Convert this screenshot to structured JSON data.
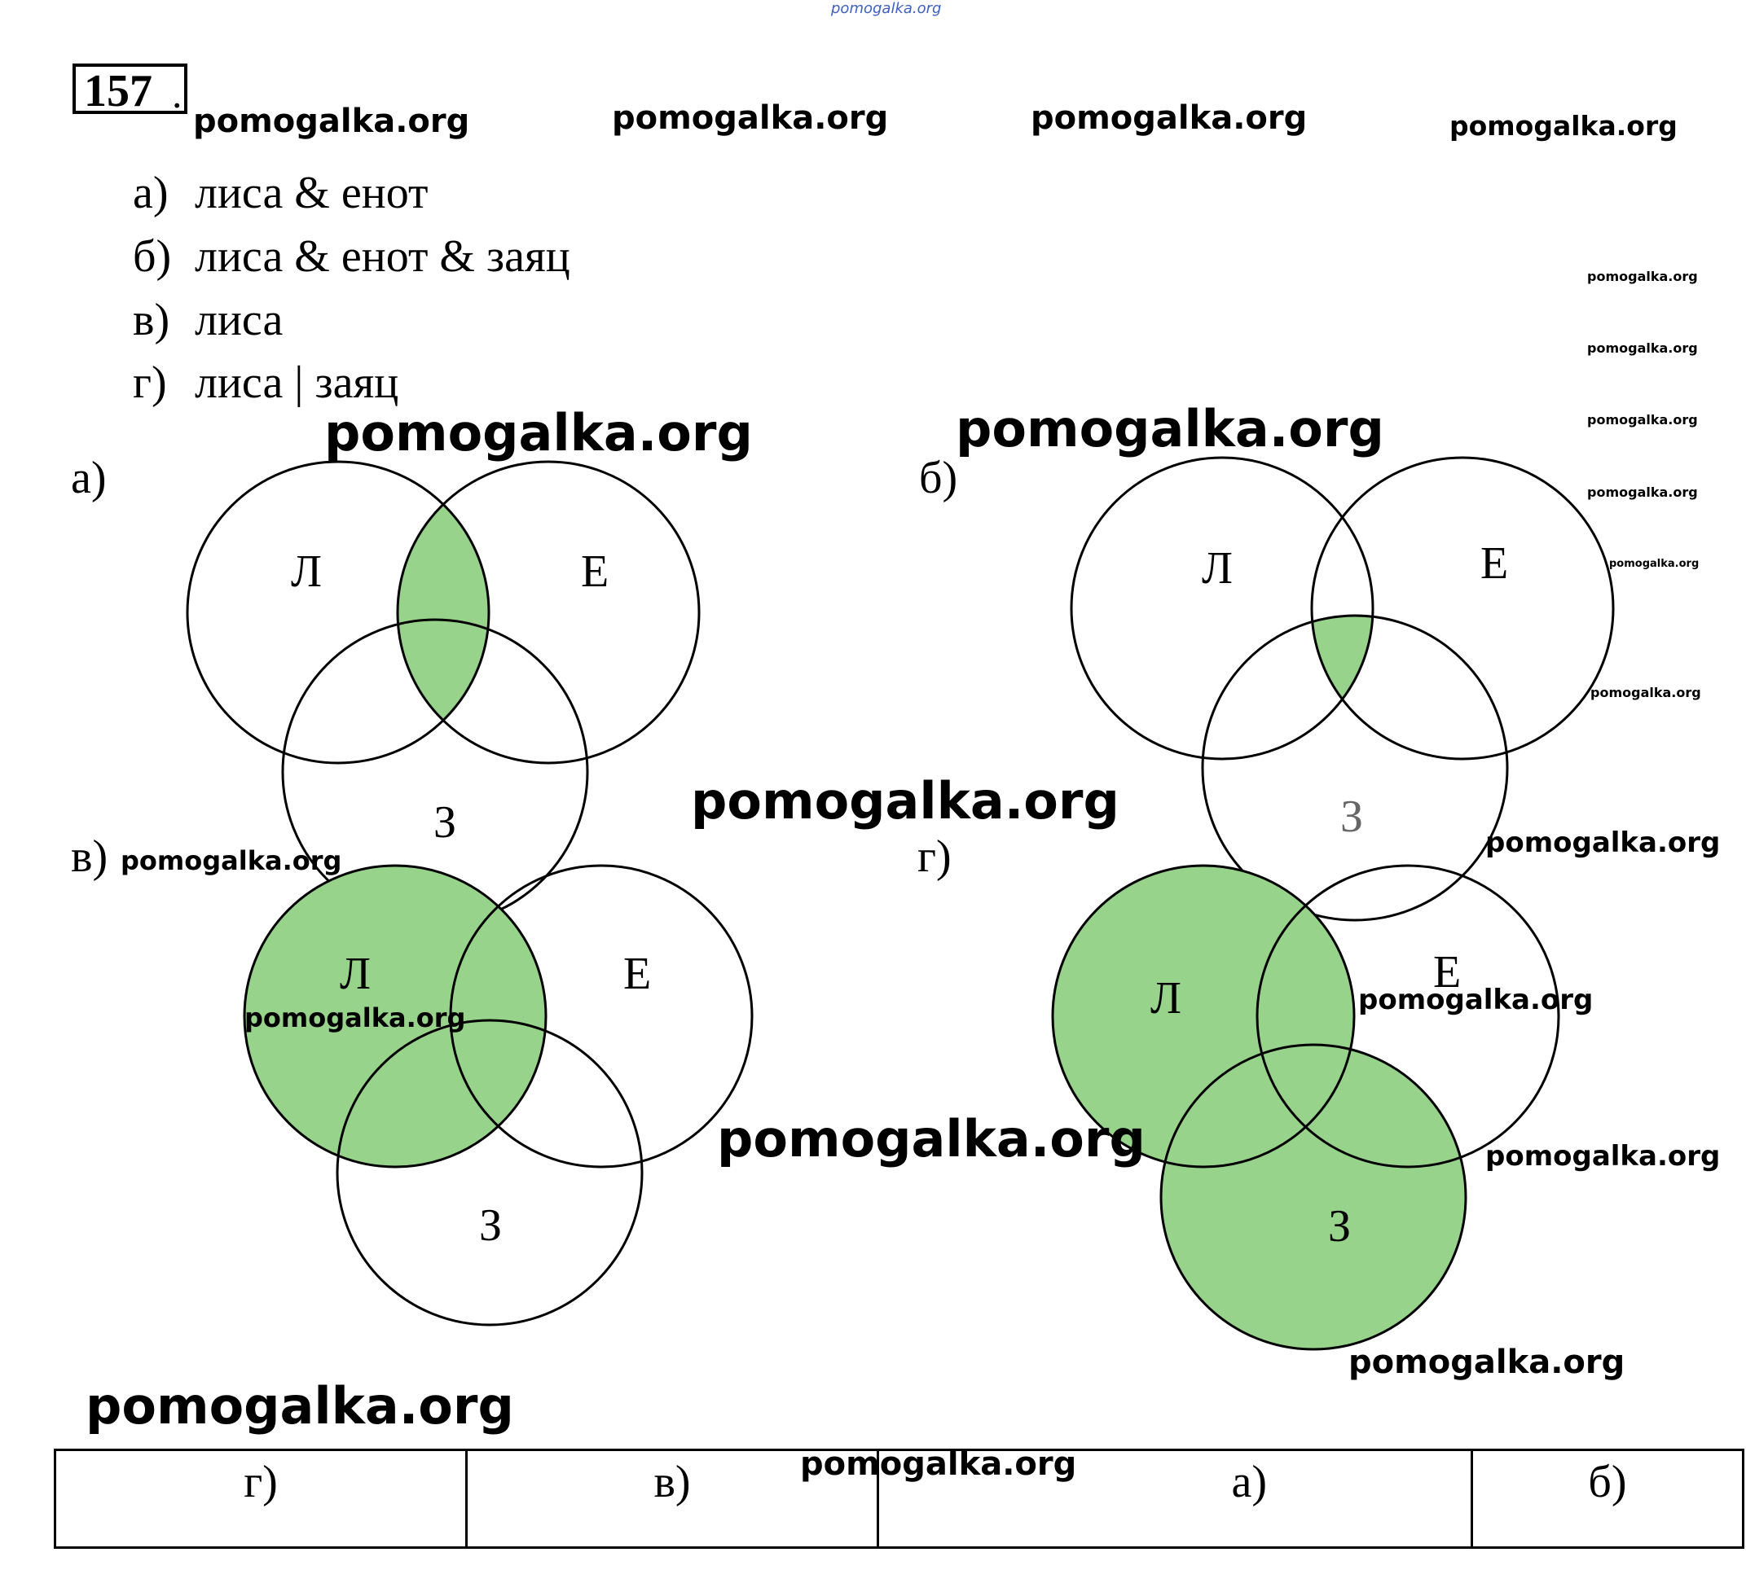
{
  "site_link": "pomogalka.org",
  "task": {
    "number": "157",
    "dot": ".",
    "items": [
      {
        "label": "а)",
        "query": "лиса & енот"
      },
      {
        "label": "б)",
        "query": "лиса & енот & заяц"
      },
      {
        "label": "в)",
        "query": "лиса"
      },
      {
        "label": "г)",
        "query": "лиса | заяц"
      }
    ]
  },
  "diagrams": [
    {
      "label": "а)",
      "sets": [
        "Л",
        "Е",
        "З"
      ],
      "shaded": "Л ∩ Е"
    },
    {
      "label": "б)",
      "sets": [
        "Л",
        "Е",
        "З"
      ],
      "shaded": "Л ∩ Е ∩ З"
    },
    {
      "label": "в)",
      "sets": [
        "Л",
        "Е",
        "З"
      ],
      "shaded": "Л"
    },
    {
      "label": "г)",
      "sets": [
        "Л",
        "Е",
        "З"
      ],
      "shaded": "Л ∪ З"
    }
  ],
  "colors": {
    "fill": "#98d38c",
    "stroke": "#000000"
  },
  "answer_row": [
    "г)",
    "в)",
    "а)",
    "б)"
  ],
  "watermark": "pomogalka.org"
}
